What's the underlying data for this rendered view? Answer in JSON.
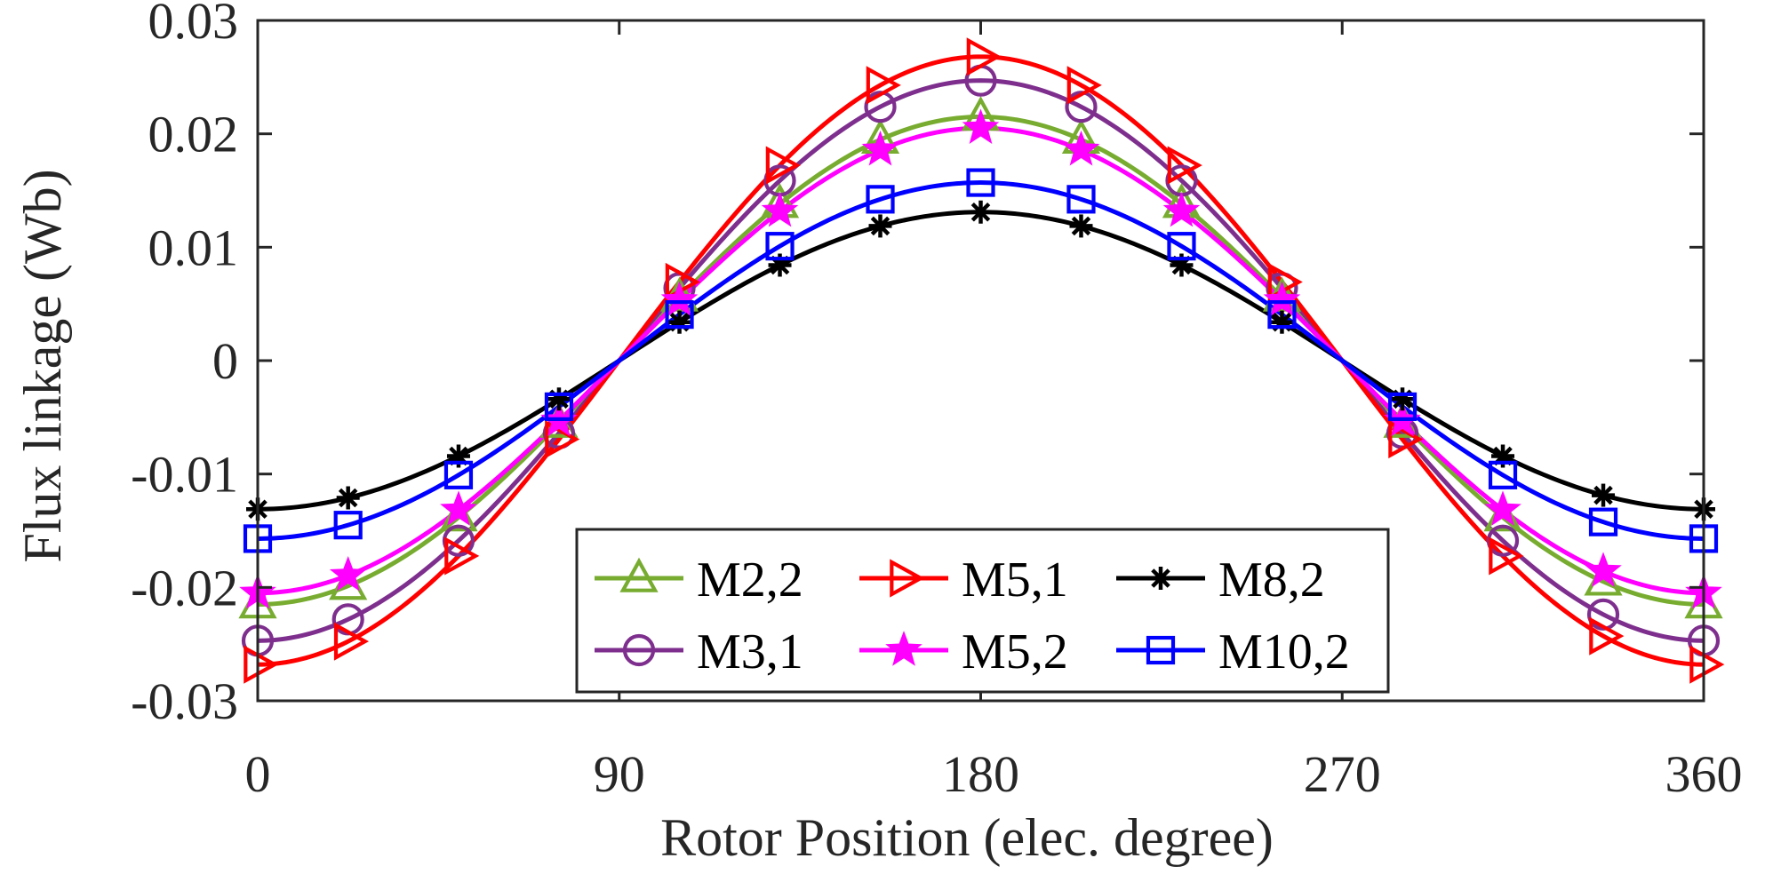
{
  "chart_data": {
    "type": "line",
    "title": "",
    "xlabel": "Rotor Position (elec. degree)",
    "ylabel": "Flux linkage (Wb)",
    "xlim": [
      0,
      360
    ],
    "ylim": [
      -0.03,
      0.03
    ],
    "xticks": [
      0,
      90,
      180,
      270,
      360
    ],
    "xtick_labels": [
      "0",
      "90",
      "180",
      "270",
      "360"
    ],
    "yticks": [
      -0.03,
      -0.02,
      -0.01,
      0,
      0.01,
      0.02,
      0.03
    ],
    "ytick_labels": [
      "-0.03",
      "-0.02",
      "-0.01",
      "0",
      "0.01",
      "0.02",
      "0.03"
    ],
    "grid": false,
    "legend_position": "bottom-center",
    "marker_x": [
      0,
      22.5,
      50,
      75,
      105,
      130,
      155,
      180,
      205,
      230,
      255,
      285,
      310,
      335,
      360
    ],
    "series": [
      {
        "name": "M2,2",
        "color": "#77ac30",
        "marker": "triangle-up",
        "amplitude": 0.0215
      },
      {
        "name": "M3,1",
        "color": "#7e2f8e",
        "marker": "circle",
        "amplitude": 0.0247
      },
      {
        "name": "M5,1",
        "color": "#ff0000",
        "marker": "triangle-right",
        "amplitude": 0.0268
      },
      {
        "name": "M5,2",
        "color": "#ff00ff",
        "marker": "star",
        "amplitude": 0.0205
      },
      {
        "name": "M8,2",
        "color": "#000000",
        "marker": "asterisk",
        "amplitude": 0.0131
      },
      {
        "name": "M10,2",
        "color": "#0000ff",
        "marker": "square",
        "amplitude": 0.0157
      }
    ],
    "legend_order": [
      "M2,2",
      "M5,1",
      "M8,2",
      "M3,1",
      "M5,2",
      "M10,2"
    ]
  }
}
